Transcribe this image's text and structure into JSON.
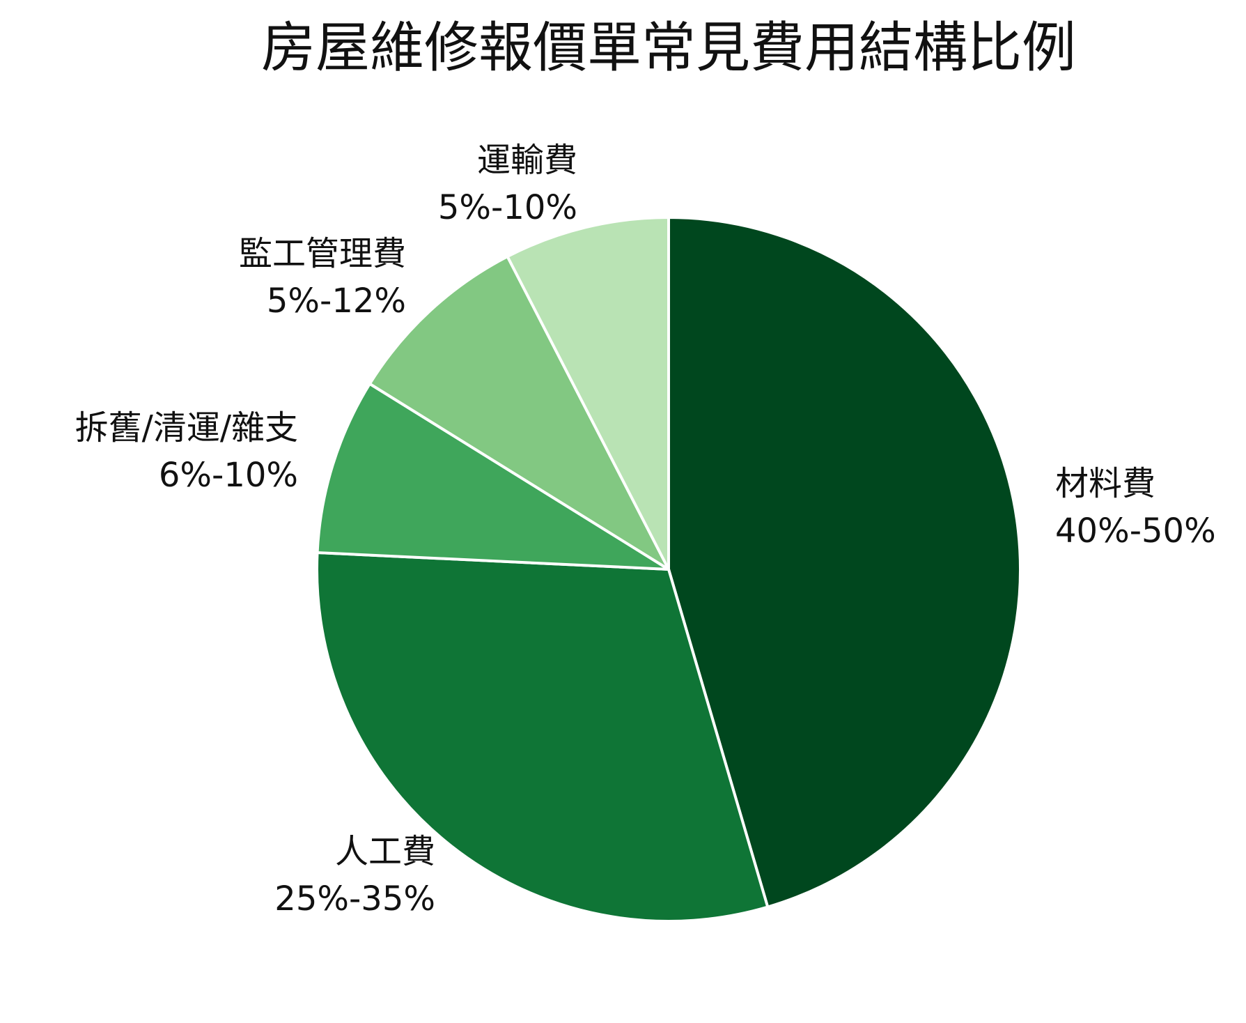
{
  "chart_data": {
    "type": "pie",
    "title": "房屋維修報價單常見費用結構比例",
    "slices": [
      {
        "name": "材料費",
        "range": "40%-50%",
        "value": 45,
        "color": "#00471e"
      },
      {
        "name": "人工費",
        "range": "25%-35%",
        "value": 30,
        "color": "#0f7536"
      },
      {
        "name": "拆舊/清運/雜支",
        "range": "6%-10%",
        "value": 8,
        "color": "#3fa65b"
      },
      {
        "name": "監工管理費",
        "range": "5%-12%",
        "value": 8.5,
        "color": "#82c882"
      },
      {
        "name": "運輸費",
        "range": "5%-10%",
        "value": 7.5,
        "color": "#b9e3b4"
      }
    ],
    "start": "top",
    "direction": "clockwise",
    "legend": "none"
  }
}
